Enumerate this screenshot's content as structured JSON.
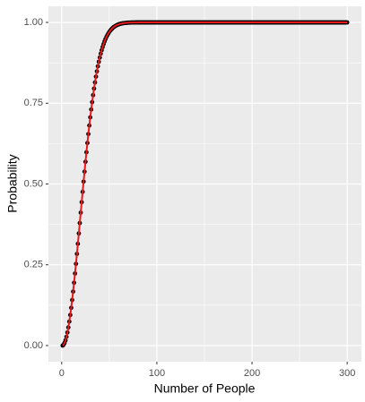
{
  "chart_data": {
    "type": "scatter_line",
    "xlabel": "Number of People",
    "ylabel": "Probability",
    "x": [
      1,
      2,
      3,
      4,
      5,
      6,
      7,
      8,
      9,
      10,
      11,
      12,
      13,
      14,
      15,
      16,
      17,
      18,
      19,
      20,
      21,
      22,
      23,
      24,
      25,
      26,
      27,
      28,
      29,
      30,
      31,
      32,
      33,
      34,
      35,
      36,
      37,
      38,
      39,
      40,
      41,
      42,
      43,
      44,
      45,
      46,
      47,
      48,
      49,
      50,
      51,
      52,
      53,
      54,
      55,
      56,
      57,
      58,
      59,
      60,
      61,
      62,
      63,
      64,
      65,
      66,
      67,
      68,
      69,
      70,
      71,
      72,
      73,
      74,
      75,
      76,
      77,
      78,
      79,
      80,
      81,
      82,
      83,
      84,
      85,
      86,
      87,
      88,
      89,
      90,
      91,
      92,
      93,
      94,
      95,
      96,
      97,
      98,
      99,
      100,
      101,
      102,
      103,
      104,
      105,
      106,
      107,
      108,
      109,
      110,
      111,
      112,
      113,
      114,
      115,
      116,
      117,
      118,
      119,
      120,
      121,
      122,
      123,
      124,
      125,
      126,
      127,
      128,
      129,
      130,
      131,
      132,
      133,
      134,
      135,
      136,
      137,
      138,
      139,
      140,
      141,
      142,
      143,
      144,
      145,
      146,
      147,
      148,
      149,
      150,
      151,
      152,
      153,
      154,
      155,
      156,
      157,
      158,
      159,
      160,
      161,
      162,
      163,
      164,
      165,
      166,
      167,
      168,
      169,
      170,
      171,
      172,
      173,
      174,
      175,
      176,
      177,
      178,
      179,
      180,
      181,
      182,
      183,
      184,
      185,
      186,
      187,
      188,
      189,
      190,
      191,
      192,
      193,
      194,
      195,
      196,
      197,
      198,
      199,
      200,
      201,
      202,
      203,
      204,
      205,
      206,
      207,
      208,
      209,
      210,
      211,
      212,
      213,
      214,
      215,
      216,
      217,
      218,
      219,
      220,
      221,
      222,
      223,
      224,
      225,
      226,
      227,
      228,
      229,
      230,
      231,
      232,
      233,
      234,
      235,
      236,
      237,
      238,
      239,
      240,
      241,
      242,
      243,
      244,
      245,
      246,
      247,
      248,
      249,
      250,
      251,
      252,
      253,
      254,
      255,
      256,
      257,
      258,
      259,
      260,
      261,
      262,
      263,
      264,
      265,
      266,
      267,
      268,
      269,
      270,
      271,
      272,
      273,
      274,
      275,
      276,
      277,
      278,
      279,
      280,
      281,
      282,
      283,
      284,
      285,
      286,
      287,
      288,
      289,
      290,
      291,
      292,
      293,
      294,
      295,
      296,
      297,
      298,
      299,
      300
    ],
    "values": [
      0,
      0.0027,
      0.0082,
      0.0164,
      0.0271,
      0.0405,
      0.0562,
      0.0743,
      0.0946,
      0.1169,
      0.1411,
      0.167,
      0.1944,
      0.2231,
      0.2529,
      0.2836,
      0.315,
      0.3469,
      0.3791,
      0.4114,
      0.4437,
      0.4757,
      0.5073,
      0.5383,
      0.5687,
      0.5982,
      0.6269,
      0.6545,
      0.681,
      0.7063,
      0.7305,
      0.7533,
      0.775,
      0.7953,
      0.8144,
      0.8322,
      0.8487,
      0.8641,
      0.8782,
      0.8912,
      0.9032,
      0.914,
      0.9239,
      0.9329,
      0.941,
      0.9483,
      0.9548,
      0.9606,
      0.9658,
      0.9704,
      0.9744,
      0.978,
      0.9811,
      0.9839,
      0.9863,
      0.9883,
      0.9901,
      0.9917,
      0.993,
      0.9941,
      0.9951,
      0.9959,
      0.9966,
      0.9972,
      0.9977,
      0.9981,
      0.9984,
      0.9987,
      0.999,
      0.9992,
      0.9993,
      0.9995,
      0.9996,
      0.9997,
      0.9997,
      0.9998,
      0.9998,
      0.9999,
      0.9999,
      0.9999,
      1,
      1,
      1,
      1,
      1,
      1,
      1,
      1,
      1,
      1,
      1,
      1,
      1,
      1,
      1,
      1,
      1,
      1,
      1,
      1,
      1,
      1,
      1,
      1,
      1,
      1,
      1,
      1,
      1,
      1,
      1,
      1,
      1,
      1,
      1,
      1,
      1,
      1,
      1,
      1,
      1,
      1,
      1,
      1,
      1,
      1,
      1,
      1,
      1,
      1,
      1,
      1,
      1,
      1,
      1,
      1,
      1,
      1,
      1,
      1,
      1,
      1,
      1,
      1,
      1,
      1,
      1,
      1,
      1,
      1,
      1,
      1,
      1,
      1,
      1,
      1,
      1,
      1,
      1,
      1,
      1,
      1,
      1,
      1,
      1,
      1,
      1,
      1,
      1,
      1,
      1,
      1,
      1,
      1,
      1,
      1,
      1,
      1,
      1,
      1,
      1,
      1,
      1,
      1,
      1,
      1,
      1,
      1,
      1,
      1,
      1,
      1,
      1,
      1,
      1,
      1,
      1,
      1,
      1,
      1,
      1,
      1,
      1,
      1,
      1,
      1,
      1,
      1,
      1,
      1,
      1,
      1,
      1,
      1,
      1,
      1,
      1,
      1,
      1,
      1,
      1,
      1,
      1,
      1,
      1,
      1,
      1,
      1,
      1,
      1,
      1,
      1,
      1,
      1,
      1,
      1,
      1,
      1,
      1,
      1,
      1,
      1,
      1,
      1,
      1,
      1,
      1,
      1,
      1,
      1,
      1,
      1,
      1,
      1,
      1,
      1,
      1,
      1,
      1,
      1,
      1,
      1,
      1,
      1,
      1,
      1,
      1,
      1,
      1,
      1,
      1,
      1,
      1,
      1,
      1,
      1,
      1,
      1,
      1,
      1,
      1,
      1,
      1,
      1,
      1,
      1,
      1,
      1,
      1,
      1,
      1,
      1,
      1,
      1,
      1,
      1,
      1,
      1,
      1,
      1
    ],
    "line_color": "#e41a1c",
    "point_color": "#000000",
    "xlim": [
      -13.95,
      314.95
    ],
    "xticks": [
      0,
      100,
      200,
      300
    ],
    "ylim": [
      -0.05,
      1.05
    ],
    "yticks": [
      {
        "value": 0,
        "label": "0.00"
      },
      {
        "value": 0.25,
        "label": "0.25"
      },
      {
        "value": 0.5,
        "label": "0.50"
      },
      {
        "value": 0.75,
        "label": "0.75"
      },
      {
        "value": 1,
        "label": "1.00"
      }
    ],
    "grid": true
  }
}
